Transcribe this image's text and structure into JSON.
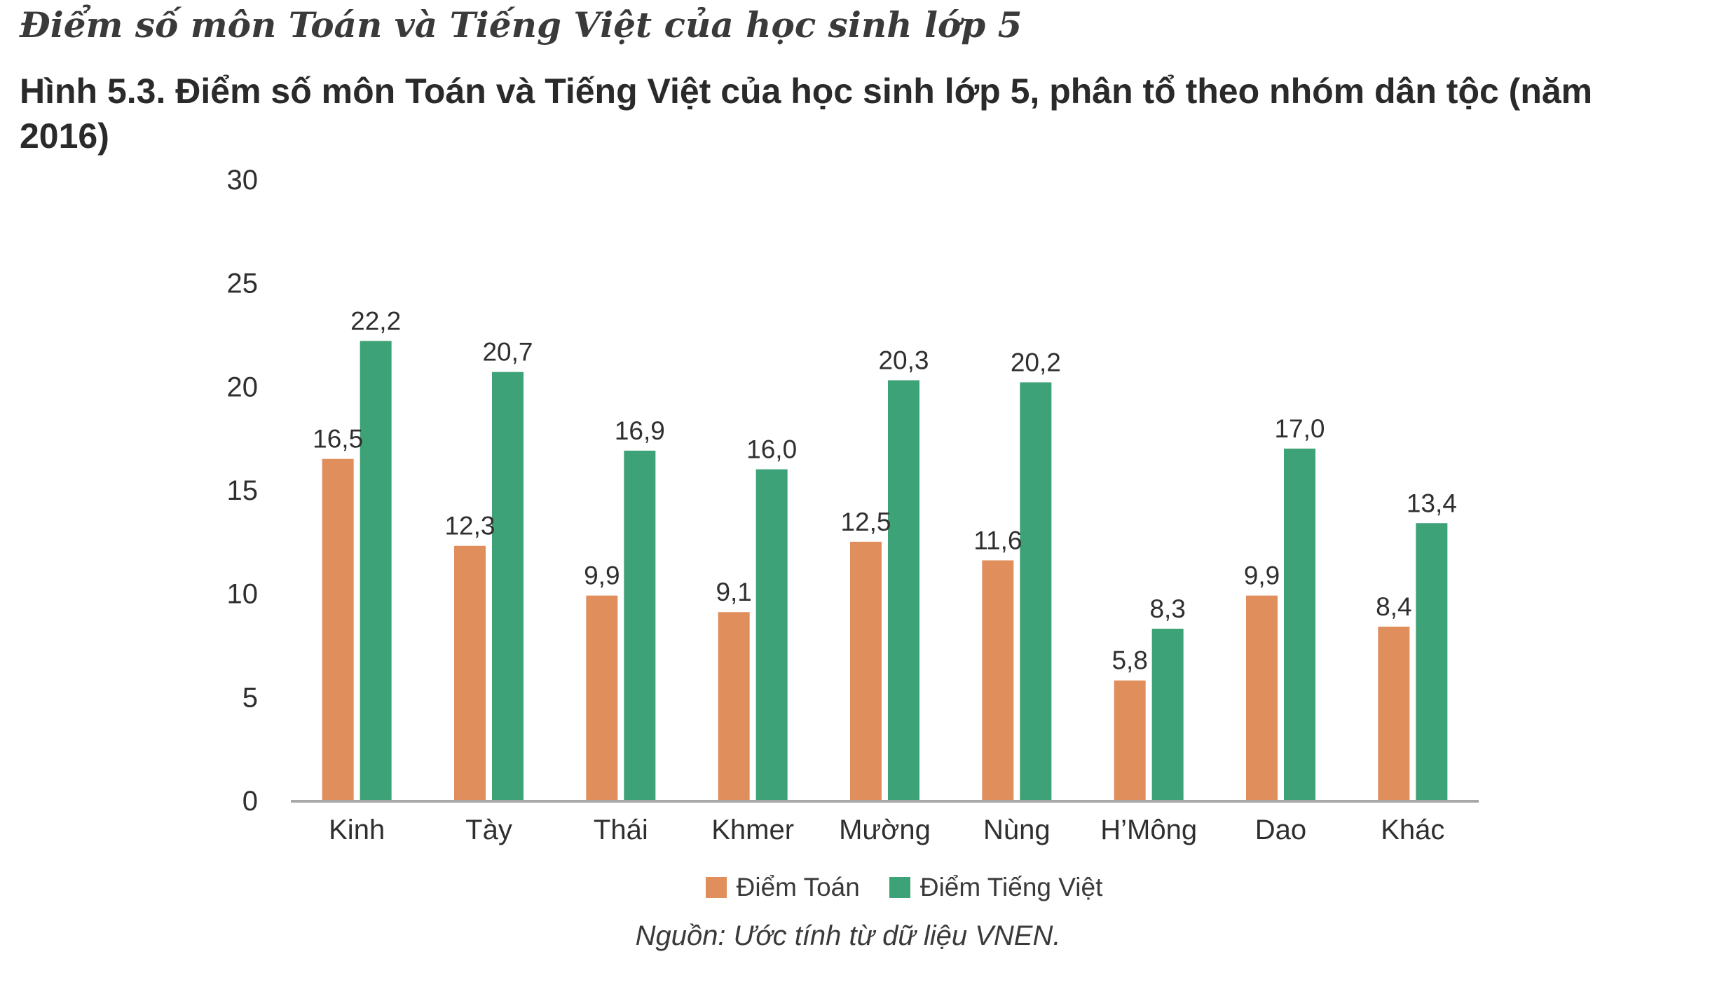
{
  "heading": "Điểm số môn Toán và Tiếng Việt của học sinh lớp 5",
  "chart_data": {
    "type": "bar",
    "title": "Hình 5.3. Điểm số môn Toán và Tiếng Việt của học sinh lớp 5, phân tổ theo nhóm dân tộc (năm 2016)",
    "categories": [
      "Kinh",
      "Tày",
      "Thái",
      "Khmer",
      "Mường",
      "Nùng",
      "H’Mông",
      "Dao",
      "Khác"
    ],
    "series": [
      {
        "name": "Điểm Toán",
        "color": "#E08F5C",
        "values": [
          16.5,
          12.3,
          9.9,
          9.1,
          12.5,
          11.6,
          5.8,
          9.9,
          8.4
        ],
        "labels": [
          "16,5",
          "12,3",
          "9,9",
          "9,1",
          "12,5",
          "11,6",
          "5,8",
          "9,9",
          "8,4"
        ]
      },
      {
        "name": "Điểm Tiếng Việt",
        "color": "#3DA277",
        "values": [
          22.2,
          20.7,
          16.9,
          16.0,
          20.3,
          20.2,
          8.3,
          17.0,
          13.4
        ],
        "labels": [
          "22,2",
          "20,7",
          "16,9",
          "16,0",
          "20,3",
          "20,2",
          "8,3",
          "17,0",
          "13,4"
        ]
      }
    ],
    "ylim": [
      0,
      30
    ],
    "yticks": [
      "0",
      "5",
      "10",
      "15",
      "20",
      "25",
      "30"
    ],
    "grid": false,
    "legend": "bottom",
    "source": "Nguồn: Ước tính từ dữ liệu VNEN."
  }
}
